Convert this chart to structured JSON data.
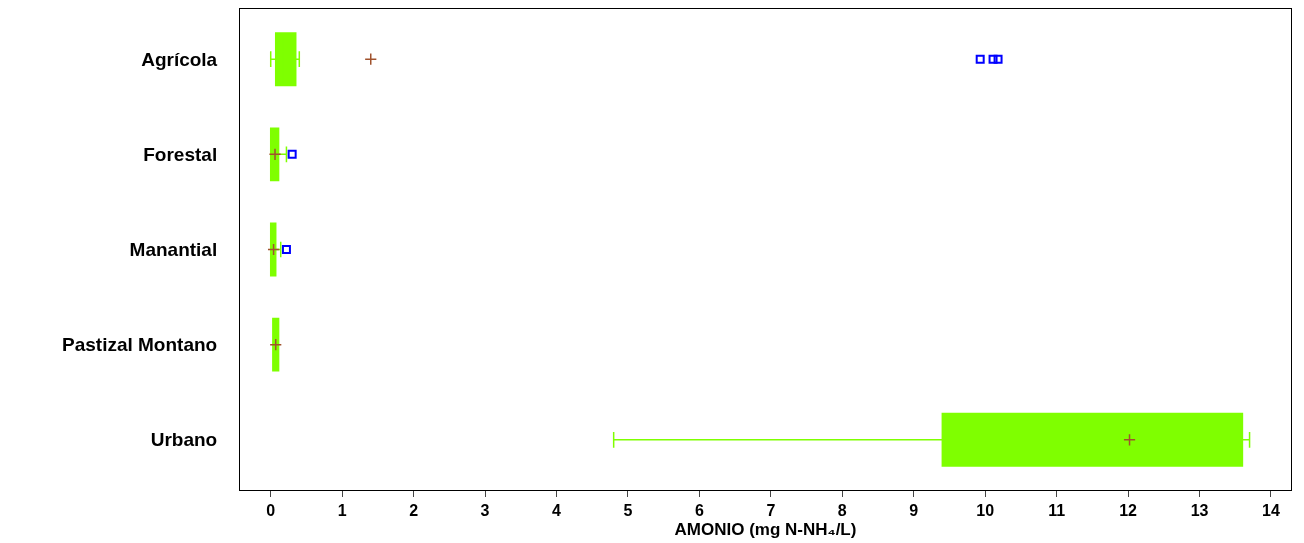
{
  "chart_data": {
    "type": "box",
    "orientation": "horizontal",
    "xlabel": "AMONIO (mg N-NH₄/L)",
    "categories": [
      "Agrícola",
      "Forestal",
      "Manantial",
      "Pastizal Montano",
      "Urbano"
    ],
    "series": [
      {
        "color": "#7fff00",
        "boxes": [
          {
            "low": 0.0,
            "q1": 0.07,
            "median": 0.17,
            "q3": 0.35,
            "high": 0.4,
            "mean": 1.4,
            "outliers": [
              9.93,
              10.11,
              10.18
            ]
          },
          {
            "low": 0.0,
            "q1": 0.0,
            "median": 0.05,
            "q3": 0.11,
            "high": 0.22,
            "mean": 0.06,
            "outliers": [
              0.3
            ]
          },
          {
            "low": 0.0,
            "q1": 0.0,
            "median": 0.03,
            "q3": 0.07,
            "high": 0.14,
            "mean": 0.04,
            "outliers": [
              0.22
            ]
          },
          {
            "low": 0.03,
            "q1": 0.03,
            "median": 0.07,
            "q3": 0.11,
            "high": 0.11,
            "mean": 0.07
          },
          {
            "low": 4.8,
            "q1": 9.4,
            "median": 11.65,
            "q3": 13.6,
            "high": 13.7,
            "mean": 12.02
          }
        ]
      }
    ],
    "xlim": [
      -0.43,
      14.28
    ],
    "xticks": [
      0,
      1,
      2,
      3,
      4,
      5,
      6,
      7,
      8,
      9,
      10,
      11,
      12,
      13,
      14
    ]
  }
}
